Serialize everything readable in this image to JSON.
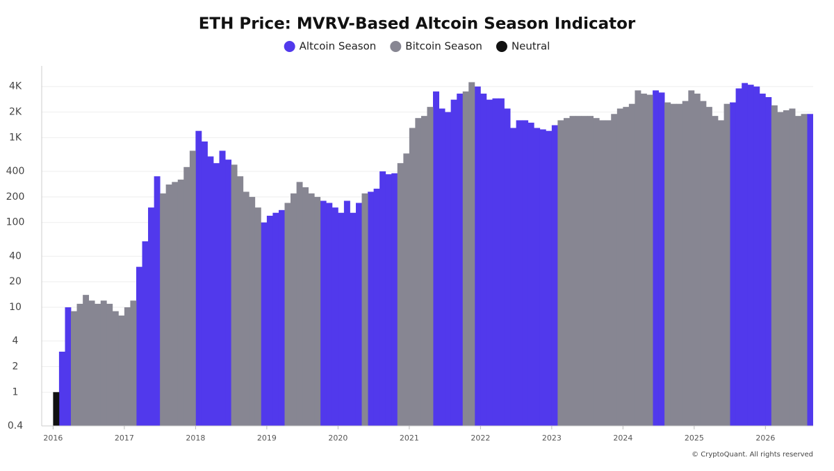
{
  "chart_data": {
    "type": "bar",
    "title": "ETH Price: MVRV-Based Altcoin Season Indicator",
    "source": "© CryptoQuant. All rights reserved",
    "log_y": true,
    "grid": true,
    "legend": "top",
    "xlim": [
      2015.84,
      2026.67
    ],
    "xticks": [
      2016,
      2017,
      2018,
      2019,
      2020,
      2021,
      2022,
      2023,
      2024,
      2025,
      2026
    ],
    "ylim": [
      0.4,
      7000
    ],
    "yticks": [
      0.4,
      1,
      2,
      4,
      10,
      20,
      40,
      100,
      200,
      400,
      {
        "value": 1000,
        "label": "1K"
      },
      {
        "value": 2000,
        "label": "2K"
      },
      {
        "value": 4000,
        "label": "4K"
      }
    ],
    "x": [
      2016,
      2016.083,
      2016.167,
      2016.25,
      2016.333,
      2016.417,
      2016.5,
      2016.583,
      2016.667,
      2016.75,
      2016.833,
      2016.917,
      2017,
      2017.083,
      2017.167,
      2017.25,
      2017.333,
      2017.417,
      2017.5,
      2017.583,
      2017.667,
      2017.75,
      2017.833,
      2017.917,
      2018,
      2018.083,
      2018.167,
      2018.25,
      2018.333,
      2018.417,
      2018.5,
      2018.583,
      2018.667,
      2018.75,
      2018.833,
      2018.917,
      2019,
      2019.083,
      2019.167,
      2019.25,
      2019.333,
      2019.417,
      2019.5,
      2019.583,
      2019.667,
      2019.75,
      2019.833,
      2019.917,
      2020,
      2020.083,
      2020.167,
      2020.25,
      2020.333,
      2020.417,
      2020.5,
      2020.583,
      2020.667,
      2020.75,
      2020.833,
      2020.917,
      2021,
      2021.083,
      2021.167,
      2021.25,
      2021.333,
      2021.417,
      2021.5,
      2021.583,
      2021.667,
      2021.75,
      2021.833,
      2021.917,
      2022,
      2022.083,
      2022.167,
      2022.25,
      2022.333,
      2022.417,
      2022.5,
      2022.583,
      2022.667,
      2022.75,
      2022.833,
      2022.917,
      2023,
      2023.083,
      2023.167,
      2023.25,
      2023.333,
      2023.417,
      2023.5,
      2023.583,
      2023.667,
      2023.75,
      2023.833,
      2023.917,
      2024,
      2024.083,
      2024.167,
      2024.25,
      2024.333,
      2024.417,
      2024.5,
      2024.583,
      2024.667,
      2024.75,
      2024.833,
      2024.917,
      2025,
      2025.083,
      2025.167,
      2025.25,
      2025.333,
      2025.417,
      2025.5,
      2025.583,
      2025.667,
      2025.75,
      2025.833,
      2025.917,
      2026,
      2026.083,
      2026.167,
      2026.25,
      2026.333,
      2026.417,
      2026.5,
      2026.583
    ],
    "series": [
      {
        "name": "Altcoin Season",
        "color": "#5139ec",
        "values": [
          null,
          3,
          10,
          null,
          null,
          null,
          null,
          null,
          null,
          null,
          null,
          null,
          null,
          null,
          30,
          60,
          150,
          350,
          null,
          null,
          null,
          null,
          null,
          null,
          1200,
          900,
          600,
          500,
          700,
          550,
          null,
          null,
          null,
          null,
          null,
          100,
          120,
          130,
          140,
          null,
          null,
          null,
          null,
          null,
          null,
          180,
          170,
          150,
          130,
          180,
          130,
          170,
          null,
          230,
          250,
          400,
          370,
          380,
          null,
          null,
          null,
          null,
          null,
          null,
          3500,
          2200,
          2000,
          2800,
          3300,
          null,
          null,
          4000,
          3300,
          2800,
          2900,
          2900,
          2200,
          1300,
          1600,
          1600,
          1500,
          1300,
          1250,
          1200,
          1400,
          null,
          null,
          null,
          null,
          null,
          null,
          null,
          null,
          null,
          null,
          null,
          null,
          null,
          null,
          null,
          null,
          3600,
          3400,
          null,
          null,
          null,
          null,
          null,
          null,
          null,
          null,
          null,
          null,
          null,
          2600,
          3800,
          4400,
          4200,
          4000,
          3300,
          3000,
          null,
          null,
          null,
          null,
          null,
          null,
          1900
        ]
      },
      {
        "name": "Bitcoin Season",
        "color": "#878692",
        "values": [
          null,
          null,
          null,
          9,
          11,
          14,
          12,
          11,
          12,
          11,
          9,
          8,
          10,
          12,
          null,
          null,
          null,
          null,
          220,
          280,
          300,
          320,
          450,
          700,
          null,
          null,
          null,
          null,
          null,
          null,
          480,
          350,
          230,
          200,
          150,
          null,
          null,
          null,
          null,
          170,
          220,
          300,
          260,
          220,
          200,
          null,
          null,
          null,
          null,
          null,
          null,
          null,
          220,
          null,
          null,
          null,
          null,
          null,
          500,
          650,
          1300,
          1700,
          1800,
          2300,
          null,
          null,
          null,
          null,
          null,
          3500,
          4500,
          null,
          null,
          null,
          null,
          null,
          null,
          null,
          null,
          null,
          null,
          null,
          null,
          null,
          null,
          1600,
          1700,
          1800,
          1800,
          1800,
          1800,
          1700,
          1600,
          1600,
          1900,
          2200,
          2300,
          2500,
          3600,
          3300,
          3200,
          null,
          null,
          2600,
          2500,
          2500,
          2700,
          3600,
          3300,
          2700,
          2300,
          1800,
          1600,
          2500,
          null,
          null,
          null,
          null,
          null,
          null,
          null,
          2400,
          2000,
          2100,
          2200,
          1800,
          1900,
          null
        ]
      },
      {
        "name": "Neutral",
        "color": "#111111",
        "values": [
          1,
          null,
          null,
          null,
          null,
          null,
          null,
          null,
          null,
          null,
          null,
          null,
          null,
          null,
          null,
          null,
          null,
          null,
          null,
          null,
          null,
          null,
          null,
          null,
          null,
          null,
          null,
          null,
          null,
          null,
          null,
          null,
          null,
          null,
          null,
          null,
          null,
          null,
          null,
          null,
          null,
          null,
          null,
          null,
          null,
          null,
          null,
          null,
          null,
          null,
          null,
          null,
          null,
          null,
          null,
          null,
          null,
          null,
          null,
          null,
          null,
          null,
          null,
          null,
          null,
          null,
          null,
          null,
          null,
          null,
          null,
          null,
          null,
          null,
          null,
          null,
          null,
          null,
          null,
          null,
          null,
          null,
          null,
          null,
          null,
          null,
          null,
          null,
          null,
          null,
          null,
          null,
          null,
          null,
          null,
          null,
          null,
          null,
          null,
          null,
          null,
          null,
          null,
          null,
          null,
          null,
          null,
          null,
          null,
          null,
          null,
          null,
          null,
          null,
          null,
          null,
          null,
          null,
          null,
          null,
          null,
          null,
          null,
          null,
          null,
          null,
          null,
          null
        ]
      }
    ]
  }
}
